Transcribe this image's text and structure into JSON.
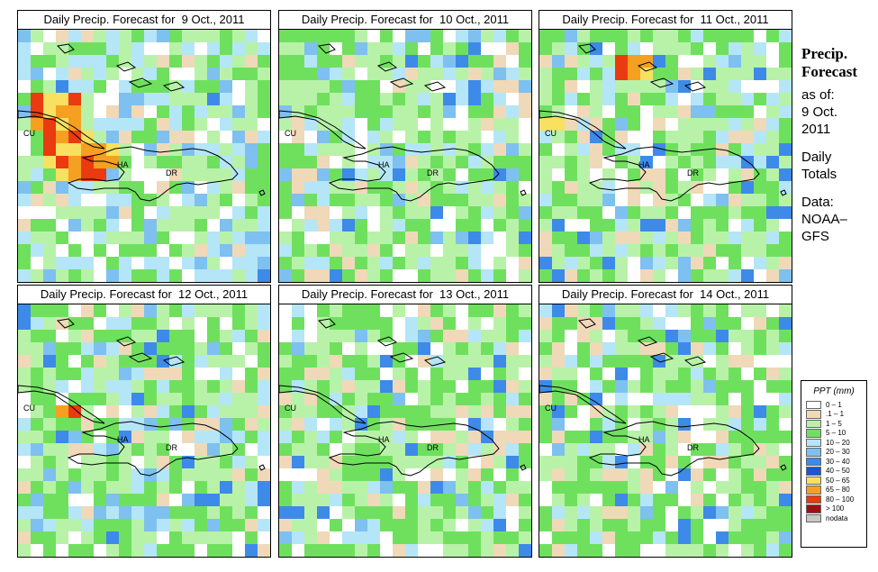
{
  "panels": [
    {
      "title": "Daily Precip. Forecast for  9 Oct., 2011",
      "seed": 11,
      "wet": 0.55,
      "hotspots": [
        [
          1,
          5,
          3
        ],
        [
          2,
          8,
          3
        ],
        [
          3,
          9,
          3
        ],
        [
          5,
          9,
          2
        ]
      ]
    },
    {
      "title": "Daily Precip. Forecast for  10 Oct., 2011",
      "seed": 23,
      "wet": 0.35,
      "hotspots": []
    },
    {
      "title": "Daily Precip. Forecast for  11 Oct., 2011",
      "seed": 37,
      "wet": 0.3,
      "hotspots": [
        [
          6,
          2,
          2
        ],
        [
          0,
          7,
          1
        ]
      ]
    },
    {
      "title": "Daily Precip. Forecast for  12 Oct., 2011",
      "seed": 41,
      "wet": 0.35,
      "hotspots": [
        [
          3,
          8,
          1
        ]
      ]
    },
    {
      "title": "Daily Precip. Forecast for  13 Oct., 2011",
      "seed": 53,
      "wet": 0.25,
      "hotspots": []
    },
    {
      "title": "Daily Precip. Forecast for  14 Oct., 2011",
      "seed": 67,
      "wet": 0.2,
      "hotspots": []
    }
  ],
  "map_labels": {
    "cu": "CU",
    "ha": "HA",
    "dr": "DR"
  },
  "side": {
    "title_line1": "Precip.",
    "title_line2": "Forecast",
    "asof": "as of:",
    "date_line1": "9 Oct.",
    "date_line2": "2011",
    "daily1": "Daily",
    "daily2": "Totals",
    "data1": "Data:",
    "data2": "NOAA–",
    "data3": "GFS"
  },
  "legend": {
    "title": "PPT (mm)",
    "items": [
      {
        "label": "0 – 1",
        "color": "#ffffff"
      },
      {
        "label": ".1 – 1",
        "color": "#efd9b8"
      },
      {
        "label": "1 – 5",
        "color": "#b8f2a8"
      },
      {
        "label": "5 – 10",
        "color": "#6fe05e"
      },
      {
        "label": "10 – 20",
        "color": "#b4e6f8"
      },
      {
        "label": "20 – 30",
        "color": "#7ec0f0"
      },
      {
        "label": "30 – 40",
        "color": "#3d8ae8"
      },
      {
        "label": "40 – 50",
        "color": "#1a55d4"
      },
      {
        "label": "50 – 65",
        "color": "#f8e060"
      },
      {
        "label": "65 – 80",
        "color": "#f5a020"
      },
      {
        "label": "80 – 100",
        "color": "#ea3a10"
      },
      {
        "label": "> 100",
        "color": "#a01010"
      },
      {
        "label": "nodata",
        "color": "#c8c8c8"
      }
    ]
  }
}
